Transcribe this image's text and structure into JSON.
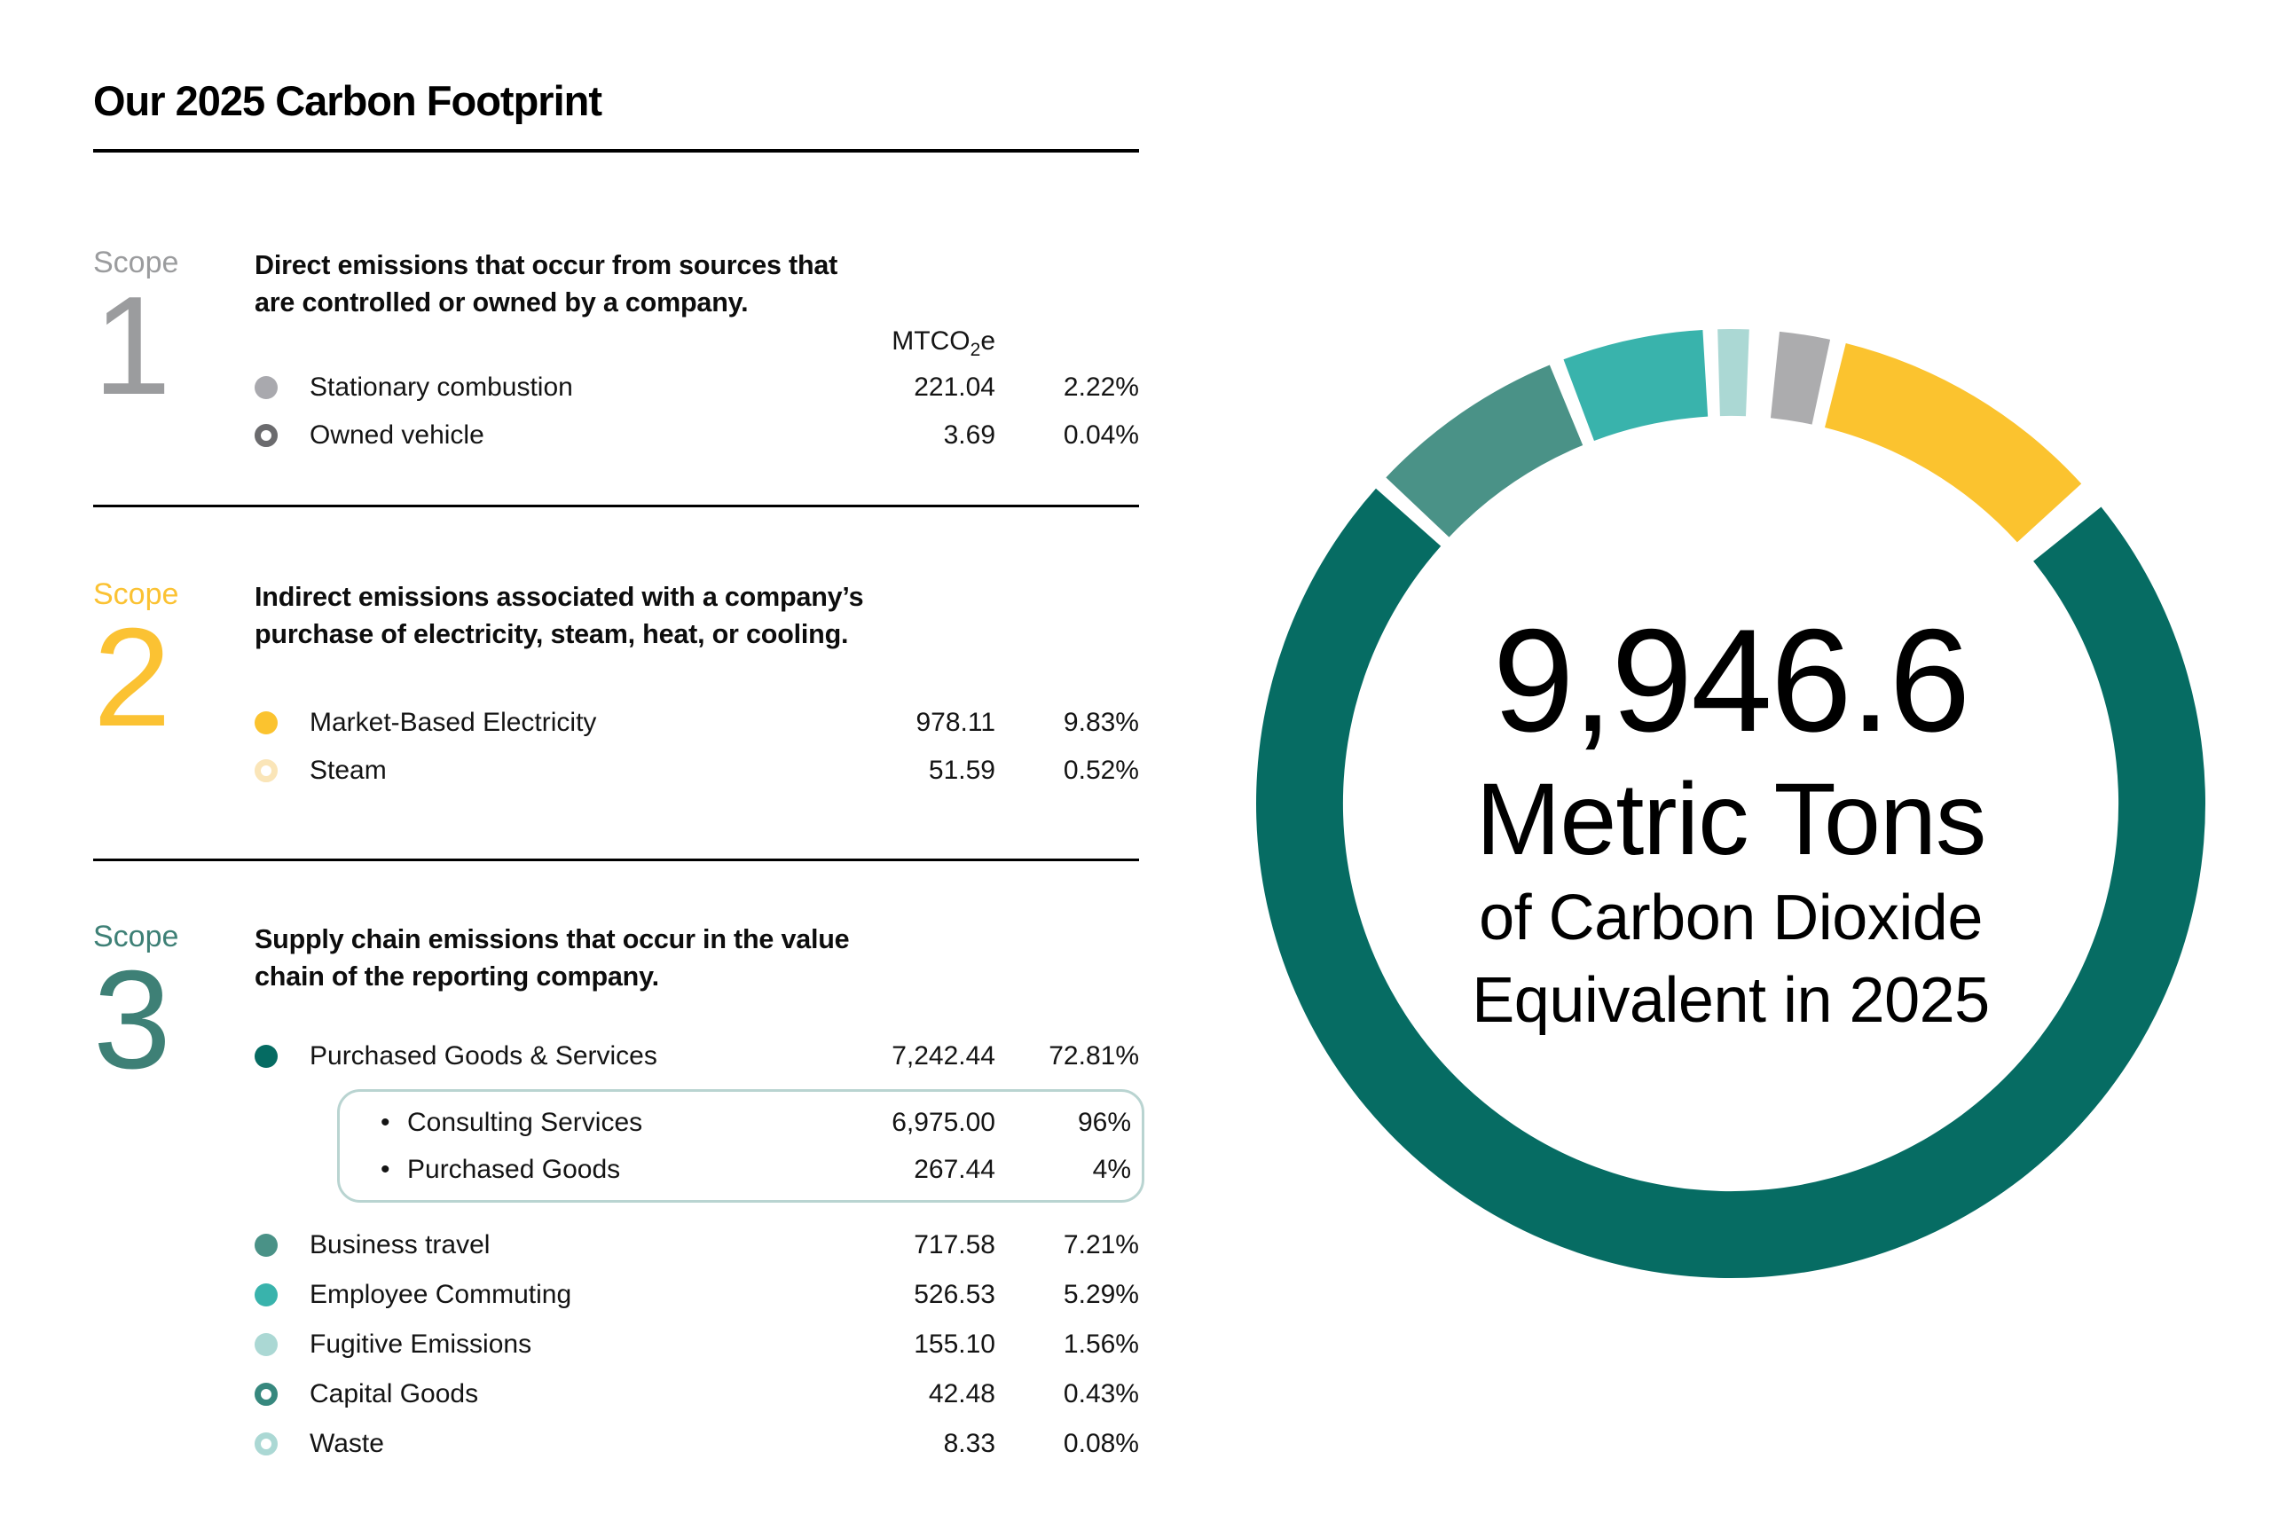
{
  "title": "Our 2025 Carbon Footprint",
  "unit_header": {
    "prefix": "MTCO",
    "sub": "2",
    "suffix": "e"
  },
  "bullet_char": "•",
  "sections": [
    {
      "scope_word": "Scope",
      "scope_number": "1",
      "color": "#9b9c9e",
      "description": "Direct emissions that occur from sources that\nare controlled or owned by a company.",
      "rows": [
        {
          "label": "Stationary combustion",
          "value": "221.04",
          "percent": "2.22%",
          "marker": "filled",
          "color": "#a9a9ae"
        },
        {
          "label": "Owned vehicle",
          "value": "3.69",
          "percent": "0.04%",
          "marker": "ring",
          "color": "#6b6b6e"
        }
      ]
    },
    {
      "scope_word": "Scope",
      "scope_number": "2",
      "color": "#fbc233",
      "description": "Indirect emissions associated with a company’s\npurchase of electricity, steam, heat, or cooling.",
      "rows": [
        {
          "label": "Market-Based Electricity",
          "value": "978.11",
          "percent": "9.83%",
          "marker": "filled",
          "color": "#fbc32f"
        },
        {
          "label": "Steam",
          "value": "51.59",
          "percent": "0.52%",
          "marker": "ring",
          "color": "#fae5b8"
        }
      ]
    },
    {
      "scope_word": "Scope",
      "scope_number": "3",
      "color": "#3e8076",
      "description": "Supply chain emissions that occur in the value\nchain of the reporting company.",
      "rows": [
        {
          "label": "Purchased Goods & Services",
          "value": "7,242.44",
          "percent": "72.81%",
          "marker": "filled",
          "color": "#056b62"
        },
        {
          "label": "Business travel",
          "value": "717.58",
          "percent": "7.21%",
          "marker": "filled",
          "color": "#4a9287"
        },
        {
          "label": "Employee Commuting",
          "value": "526.53",
          "percent": "5.29%",
          "marker": "filled",
          "color": "#39b3ac"
        },
        {
          "label": "Fugitive Emissions",
          "value": "155.10",
          "percent": "1.56%",
          "marker": "filled",
          "color": "#abd8d4"
        },
        {
          "label": "Capital Goods",
          "value": "42.48",
          "percent": "0.43%",
          "marker": "ring",
          "color": "#37887e"
        },
        {
          "label": "Waste",
          "value": "8.33",
          "percent": "0.08%",
          "marker": "ring",
          "color": "#abd8d4"
        }
      ],
      "sub_box": {
        "rows": [
          {
            "label": "Consulting Services",
            "value": "6,975.00",
            "percent": "96%"
          },
          {
            "label": "Purchased Goods",
            "value": "267.44",
            "percent": "4%"
          }
        ]
      }
    }
  ],
  "chart_data": {
    "type": "pie",
    "subtype": "donut",
    "total_label": "9,946.6",
    "total_value": 9946.6,
    "center_labels": [
      "9,946.6",
      "Metric Tons",
      "of Carbon Dioxide",
      "Equivalent in 2025"
    ],
    "start_angle_deg": 5,
    "gap_deg": 1.8,
    "min_percent_rendered": 1.0,
    "inner_radius_ratio": 0.817,
    "segments": [
      {
        "label": "Stationary combustion",
        "scope": 1,
        "value": 221.04,
        "percent": 2.22,
        "color": "#acacae"
      },
      {
        "label": "Owned vehicle",
        "scope": 1,
        "value": 3.69,
        "percent": 0.04,
        "color": "#6b6b6e"
      },
      {
        "label": "Market-Based Electricity",
        "scope": 2,
        "value": 978.11,
        "percent": 9.83,
        "color": "#fbc32f"
      },
      {
        "label": "Steam",
        "scope": 2,
        "value": 51.59,
        "percent": 0.52,
        "color": "#fae5b8"
      },
      {
        "label": "Purchased Goods & Services",
        "scope": 3,
        "value": 7242.44,
        "percent": 72.81,
        "color": "#066c63"
      },
      {
        "label": "Business travel",
        "scope": 3,
        "value": 717.58,
        "percent": 7.21,
        "color": "#4a9287"
      },
      {
        "label": "Employee Commuting",
        "scope": 3,
        "value": 526.53,
        "percent": 5.29,
        "color": "#39b3ac"
      },
      {
        "label": "Fugitive Emissions",
        "scope": 3,
        "value": 155.1,
        "percent": 1.56,
        "color": "#abd8d4"
      },
      {
        "label": "Capital Goods",
        "scope": 3,
        "value": 42.48,
        "percent": 0.43,
        "color": "#37887e"
      },
      {
        "label": "Waste",
        "scope": 3,
        "value": 8.33,
        "percent": 0.08,
        "color": "#abd8d4"
      }
    ]
  }
}
